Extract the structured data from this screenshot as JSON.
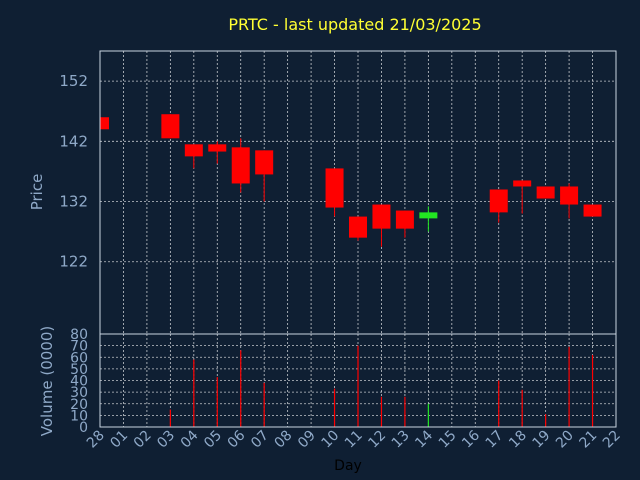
{
  "title": "PRTC - last updated 21/03/2025",
  "colors": {
    "background": "#0f1f33",
    "title": "#ffff33",
    "down": "#ff0000",
    "up": "#22e622",
    "text": "#8fa9c8"
  },
  "chart_data": [
    {
      "type": "candlestick",
      "ylabel": "Price",
      "ylim": [
        110,
        157
      ],
      "yticks": [
        122,
        132,
        142,
        152
      ],
      "grid": true,
      "x_tick_labels": [
        "28",
        "01",
        "02",
        "03",
        "04",
        "05",
        "06",
        "07",
        "08",
        "09",
        "10",
        "11",
        "12",
        "13",
        "14",
        "15",
        "16",
        "17",
        "18",
        "19",
        "20",
        "21",
        "22"
      ],
      "candles": [
        {
          "x": "28",
          "open": 146,
          "close": 144,
          "high": 146,
          "low": 144
        },
        {
          "x": "03",
          "open": 146.5,
          "close": 142.5,
          "high": 146.5,
          "low": 142.5
        },
        {
          "x": "04",
          "open": 141.5,
          "close": 139.5,
          "high": 141.5,
          "low": 137.5
        },
        {
          "x": "05",
          "open": 141.5,
          "close": 140.3,
          "high": 142,
          "low": 138.3
        },
        {
          "x": "06",
          "open": 141,
          "close": 135,
          "high": 142.5,
          "low": 133.5
        },
        {
          "x": "07",
          "open": 140.5,
          "close": 136.5,
          "high": 140.5,
          "low": 132
        },
        {
          "x": "10",
          "open": 137.5,
          "close": 131,
          "high": 137.5,
          "low": 129.5
        },
        {
          "x": "11",
          "open": 129.5,
          "close": 126,
          "high": 129.5,
          "low": 125.5
        },
        {
          "x": "12",
          "open": 131.5,
          "close": 127.5,
          "high": 131.5,
          "low": 124.5
        },
        {
          "x": "13",
          "open": 130.5,
          "close": 127.5,
          "high": 130.5,
          "low": 126
        },
        {
          "x": "14",
          "open": 129.2,
          "close": 130.2,
          "high": 131.2,
          "low": 127
        },
        {
          "x": "17",
          "open": 134,
          "close": 130.2,
          "high": 134,
          "low": 128.5
        },
        {
          "x": "18",
          "open": 135.5,
          "close": 134.5,
          "high": 135.5,
          "low": 130
        },
        {
          "x": "19",
          "open": 134.5,
          "close": 132.5,
          "high": 134.5,
          "low": 132.5
        },
        {
          "x": "20",
          "open": 134.5,
          "close": 131.5,
          "high": 135,
          "low": 129.2
        },
        {
          "x": "21",
          "open": 131.5,
          "close": 129.5,
          "high": 131.5,
          "low": 129.5
        }
      ]
    },
    {
      "type": "bar",
      "ylabel": "Volume (0000)",
      "xlabel": "Day",
      "ylim": [
        0,
        80
      ],
      "yticks": [
        0,
        10,
        20,
        30,
        40,
        50,
        60,
        70,
        80
      ],
      "grid": true,
      "categories": [
        "03",
        "04",
        "05",
        "06",
        "07",
        "10",
        "11",
        "12",
        "13",
        "14",
        "17",
        "18",
        "19",
        "20",
        "21"
      ],
      "values": [
        15,
        58,
        43,
        66,
        38,
        33,
        70,
        26,
        26,
        20,
        40,
        32,
        11,
        69,
        62
      ],
      "up_days": [
        "14"
      ]
    }
  ]
}
